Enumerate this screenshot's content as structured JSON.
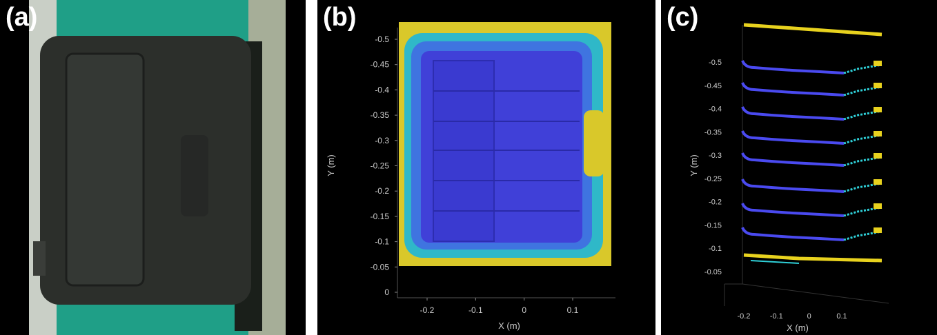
{
  "panels": [
    {
      "label": "(a)"
    },
    {
      "label": "(b)"
    },
    {
      "label": "(c)"
    }
  ],
  "plot_b": {
    "xlabel": "X (m)",
    "ylabel": "Y (m)",
    "xticks": [
      "-0.2",
      "-0.1",
      "0",
      "0.1"
    ],
    "yticks": [
      "-0.5",
      "-0.45",
      "-0.4",
      "-0.35",
      "-0.3",
      "-0.25",
      "-0.2",
      "-0.15",
      "-0.1",
      "-0.05",
      "0"
    ]
  },
  "plot_c": {
    "xlabel": "X (m)",
    "ylabel": "Y (m)",
    "xticks": [
      "-0.2",
      "-0.1",
      "0",
      "0.1"
    ],
    "yticks": [
      "-0.5",
      "-0.45",
      "-0.4",
      "-0.35",
      "-0.3",
      "-0.25",
      "-0.2",
      "-0.15",
      "-0.1",
      "-0.05"
    ]
  },
  "colors": {
    "yellow": "#e8d21e",
    "cyan": "#2fd0d8",
    "blue": "#4a4af0",
    "green_bg": "#1fa38a"
  }
}
